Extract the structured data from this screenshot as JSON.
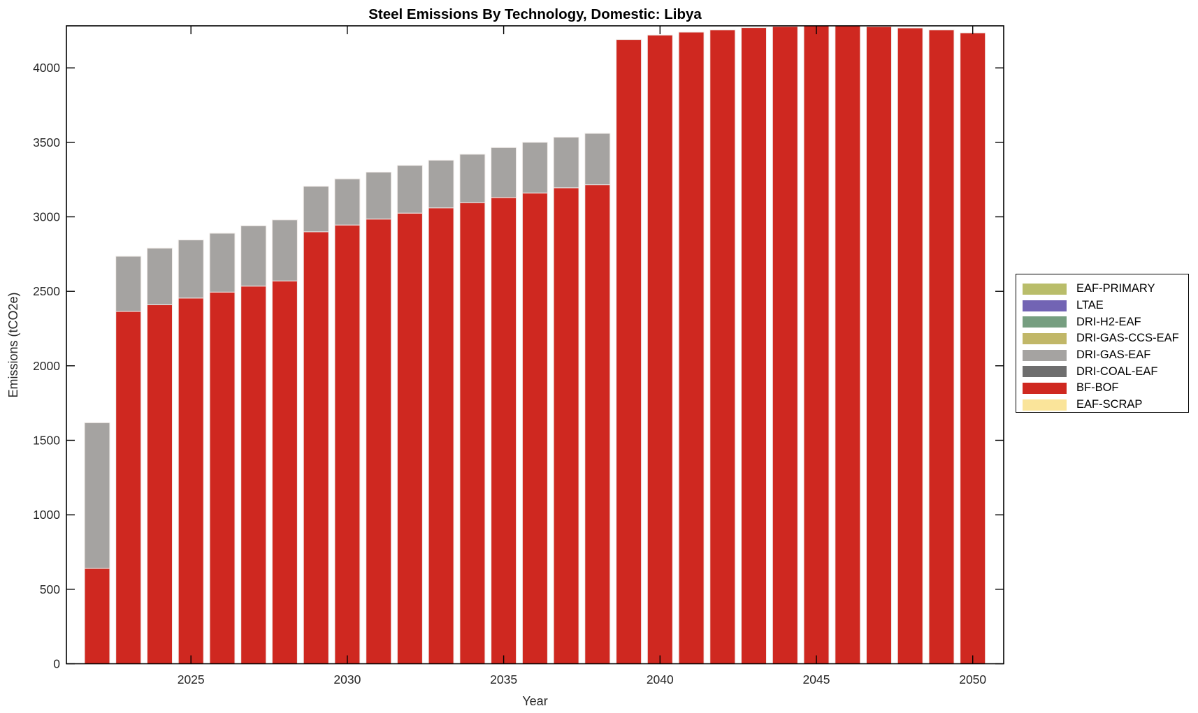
{
  "chart_data": {
    "type": "bar",
    "stacked": true,
    "title": "Steel Emissions By Technology, Domestic: Libya",
    "xlabel": "Year",
    "ylabel": "Emissions (tCO2e)",
    "x": [
      2022,
      2023,
      2024,
      2025,
      2026,
      2027,
      2028,
      2029,
      2030,
      2031,
      2032,
      2033,
      2034,
      2035,
      2036,
      2037,
      2038,
      2039,
      2040,
      2041,
      2042,
      2043,
      2044,
      2045,
      2046,
      2047,
      2048,
      2049,
      2050
    ],
    "xticks": [
      2025,
      2030,
      2035,
      2040,
      2045,
      2050
    ],
    "yticks": [
      0,
      500,
      1000,
      1500,
      2000,
      2500,
      3000,
      3500,
      4000
    ],
    "xlim": [
      2021,
      2051
    ],
    "ylim": [
      0,
      4282
    ],
    "grid": false,
    "legend_position": "right-outside",
    "series": [
      {
        "name": "EAF-PRIMARY",
        "color": "#b9bd6a",
        "values": [
          0,
          0,
          0,
          0,
          0,
          0,
          0,
          0,
          0,
          0,
          0,
          0,
          0,
          0,
          0,
          0,
          0,
          0,
          0,
          0,
          0,
          0,
          0,
          0,
          0,
          0,
          0,
          0,
          0
        ]
      },
      {
        "name": "LTAE",
        "color": "#7264b4",
        "values": [
          0,
          0,
          0,
          0,
          0,
          0,
          0,
          0,
          0,
          0,
          0,
          0,
          0,
          0,
          0,
          0,
          0,
          0,
          0,
          0,
          0,
          0,
          0,
          0,
          0,
          0,
          0,
          0,
          0
        ]
      },
      {
        "name": "DRI-H2-EAF",
        "color": "#769e80",
        "values": [
          0,
          0,
          0,
          0,
          0,
          0,
          0,
          0,
          0,
          0,
          0,
          0,
          0,
          0,
          0,
          0,
          0,
          0,
          0,
          0,
          0,
          0,
          0,
          0,
          0,
          0,
          0,
          0,
          0
        ]
      },
      {
        "name": "DRI-GAS-CCS-EAF",
        "color": "#c1b768",
        "values": [
          0,
          0,
          0,
          0,
          0,
          0,
          0,
          0,
          0,
          0,
          0,
          0,
          0,
          0,
          0,
          0,
          0,
          0,
          0,
          0,
          0,
          0,
          0,
          0,
          0,
          0,
          0,
          0,
          0
        ]
      },
      {
        "name": "DRI-GAS-EAF",
        "color": "#a5a3a1",
        "values": [
          978,
          370,
          380,
          390,
          395,
          405,
          410,
          305,
          310,
          315,
          320,
          320,
          325,
          335,
          340,
          340,
          345,
          0,
          0,
          0,
          0,
          0,
          0,
          0,
          0,
          0,
          0,
          0,
          0
        ]
      },
      {
        "name": "DRI-COAL-EAF",
        "color": "#6e6e6e",
        "values": [
          0,
          0,
          0,
          0,
          0,
          0,
          0,
          0,
          0,
          0,
          0,
          0,
          0,
          0,
          0,
          0,
          0,
          0,
          0,
          0,
          0,
          0,
          0,
          0,
          0,
          0,
          0,
          0,
          0
        ]
      },
      {
        "name": "BF-BOF",
        "color": "#cf2820",
        "values": [
          640,
          2365,
          2410,
          2455,
          2495,
          2535,
          2570,
          2900,
          2945,
          2985,
          3025,
          3060,
          3095,
          3130,
          3160,
          3195,
          3215,
          4190,
          4220,
          4240,
          4255,
          4270,
          4278,
          4282,
          4282,
          4277,
          4268,
          4255,
          4235
        ]
      },
      {
        "name": "EAF-SCRAP",
        "color": "#fae49a",
        "values": [
          0,
          0,
          0,
          0,
          0,
          0,
          0,
          0,
          0,
          0,
          0,
          0,
          0,
          0,
          0,
          0,
          0,
          0,
          0,
          0,
          0,
          0,
          0,
          0,
          0,
          0,
          0,
          0,
          0
        ]
      }
    ],
    "style": {
      "background": "#ffffff",
      "axis_color": "#000000",
      "tick_label_color": "#262626",
      "title_color": "#000000",
      "bar_edge_color": "#f1ece9"
    }
  }
}
